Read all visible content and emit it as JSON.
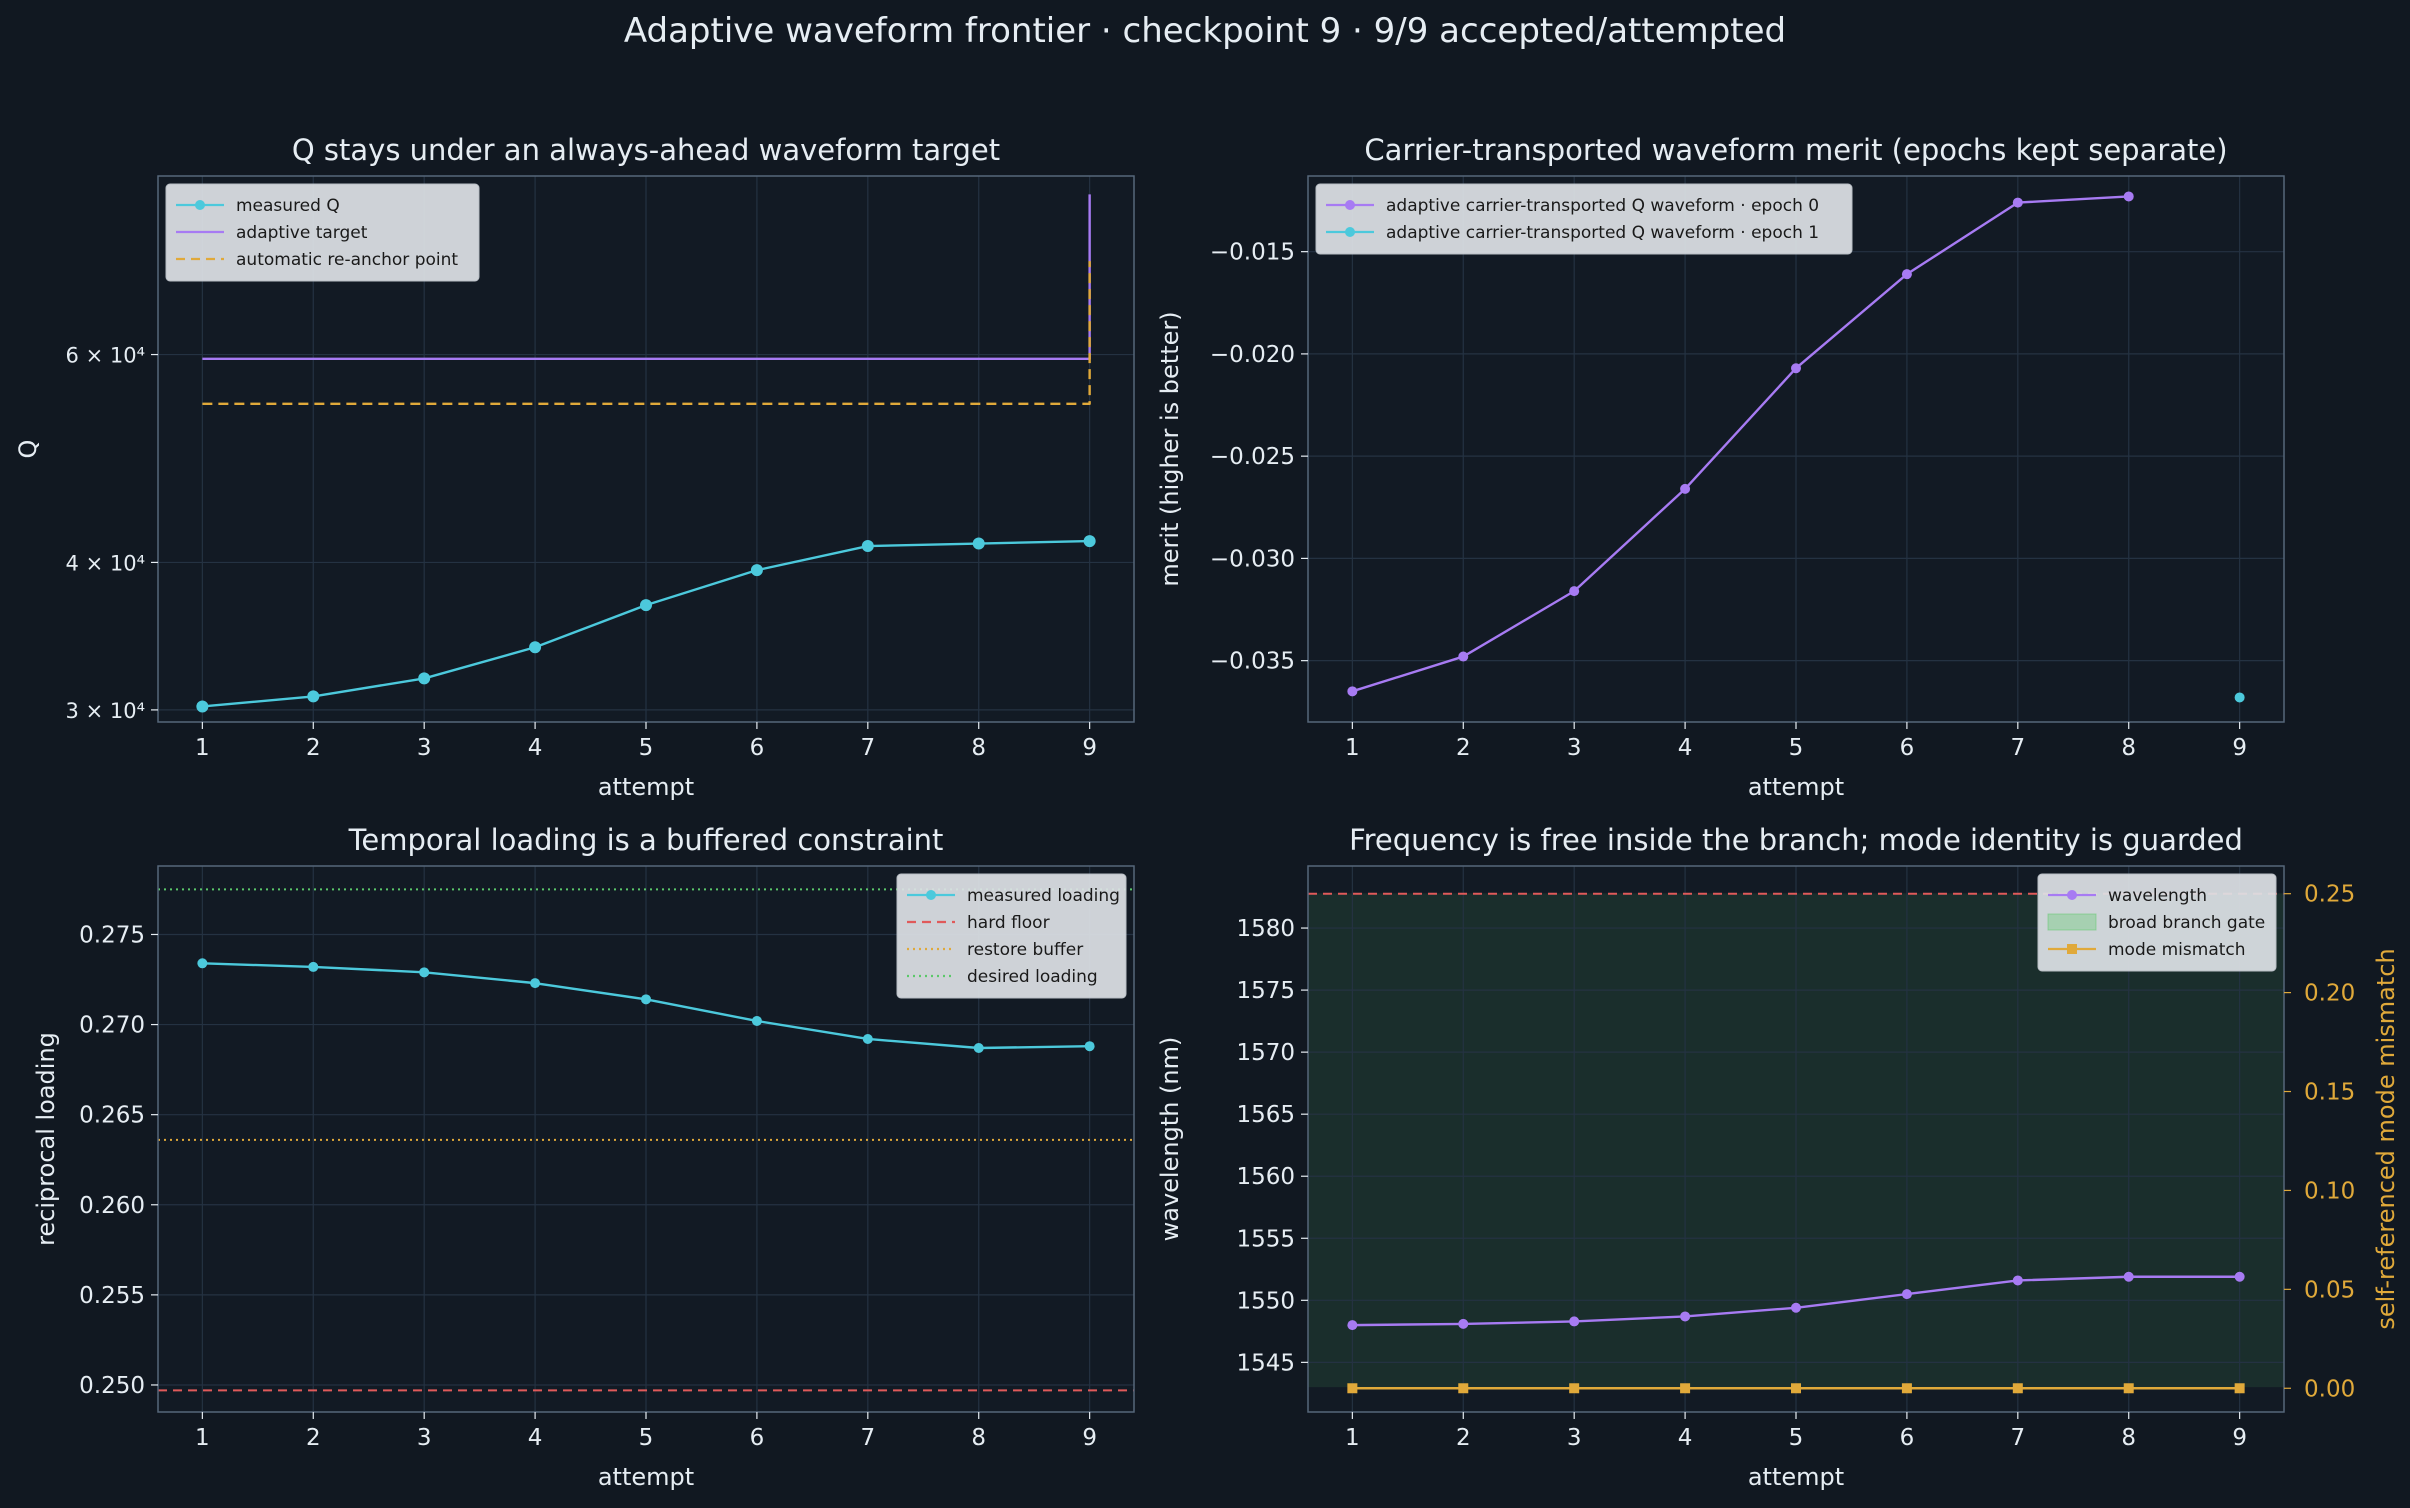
{
  "suptitle": "Adaptive waveform frontier · checkpoint 9 · 9/9 accepted/attempted",
  "colors": {
    "background": "#111821",
    "panel": "#121a24",
    "text": "#e6edf3",
    "spine": "#56677a",
    "grid": "#243242",
    "cyan": "#4cc9dc",
    "purple": "#a77bf3",
    "gold": "#e0a93a",
    "red": "#e05a5a",
    "green": "#5bc86a",
    "gate_fill": "#1a2e2c"
  },
  "chart_data": [
    {
      "id": "q",
      "type": "line",
      "title": "Q stays under an always-ahead waveform target",
      "xlabel": "attempt",
      "ylabel": "Q",
      "yscale": "log",
      "xlim": [
        0.6,
        9.4
      ],
      "ylim": [
        29300,
        85000
      ],
      "xticks": [
        1,
        2,
        3,
        4,
        5,
        6,
        7,
        8,
        9
      ],
      "yticks": [
        {
          "value": 30000,
          "label": "3 × 10⁴"
        },
        {
          "value": 40000,
          "label": "4 × 10⁴"
        },
        {
          "value": 60000,
          "label": "6 × 10⁴"
        }
      ],
      "grid": true,
      "legend_position": "upper-left",
      "series": [
        {
          "name": "measured Q",
          "kind": "markers-line",
          "x": [
            1,
            2,
            3,
            4,
            5,
            6,
            7,
            8,
            9
          ],
          "y": [
            30200,
            30800,
            31900,
            33900,
            36800,
            39400,
            41300,
            41500,
            41700
          ]
        },
        {
          "name": "adaptive target",
          "kind": "step",
          "x": [
            1,
            9,
            9
          ],
          "y": [
            59500,
            59500,
            82000
          ]
        },
        {
          "name": "automatic re-anchor point",
          "kind": "dashed-step",
          "x": [
            1,
            9,
            9
          ],
          "y": [
            54500,
            54500,
            72000
          ]
        }
      ]
    },
    {
      "id": "merit",
      "type": "line",
      "title": "Carrier-transported waveform merit (epochs kept separate)",
      "xlabel": "attempt",
      "ylabel": "merit (higher is better)",
      "xlim": [
        0.6,
        9.4
      ],
      "ylim": [
        -0.038,
        -0.0113
      ],
      "xticks": [
        1,
        2,
        3,
        4,
        5,
        6,
        7,
        8,
        9
      ],
      "yticks": [
        -0.035,
        -0.03,
        -0.025,
        -0.02,
        -0.015
      ],
      "ytick_labels": [
        "−0.035",
        "−0.030",
        "−0.025",
        "−0.020",
        "−0.015"
      ],
      "grid": true,
      "legend_position": "upper-left",
      "series": [
        {
          "name": "adaptive carrier-transported Q waveform · epoch 0",
          "kind": "markers-line",
          "x": [
            1,
            2,
            3,
            4,
            5,
            6,
            7,
            8
          ],
          "y": [
            -0.0365,
            -0.0348,
            -0.0316,
            -0.0266,
            -0.0207,
            -0.0161,
            -0.0126,
            -0.0123
          ]
        },
        {
          "name": "adaptive carrier-transported Q waveform · epoch 1",
          "kind": "markers-line",
          "x": [
            9
          ],
          "y": [
            -0.0368
          ]
        }
      ]
    },
    {
      "id": "loading",
      "type": "line",
      "title": "Temporal loading is a buffered constraint",
      "xlabel": "attempt",
      "ylabel": "reciprocal loading",
      "xlim": [
        0.6,
        9.4
      ],
      "ylim": [
        0.2485,
        0.2788
      ],
      "xticks": [
        1,
        2,
        3,
        4,
        5,
        6,
        7,
        8,
        9
      ],
      "yticks": [
        0.25,
        0.255,
        0.26,
        0.265,
        0.27,
        0.275
      ],
      "ytick_labels": [
        "0.250",
        "0.255",
        "0.260",
        "0.265",
        "0.270",
        "0.275"
      ],
      "grid": true,
      "legend_position": "upper-right",
      "series": [
        {
          "name": "measured loading",
          "kind": "markers-line",
          "x": [
            1,
            2,
            3,
            4,
            5,
            6,
            7,
            8,
            9
          ],
          "y": [
            0.2734,
            0.2732,
            0.2729,
            0.2723,
            0.2714,
            0.2702,
            0.2692,
            0.2687,
            0.2688
          ]
        },
        {
          "name": "hard floor",
          "kind": "hline-dashed",
          "y": 0.2497
        },
        {
          "name": "restore buffer",
          "kind": "hline-dotted",
          "y": 0.2636
        },
        {
          "name": "desired loading",
          "kind": "hline-dotted",
          "y": 0.2775
        }
      ]
    },
    {
      "id": "wavelength",
      "type": "line",
      "title": "Frequency is free inside the branch; mode identity is guarded",
      "xlabel": "attempt",
      "ylabel": "wavelength (nm)",
      "ylabel_right": "self-referenced mode mismatch",
      "xlim": [
        0.6,
        9.4
      ],
      "ylim": [
        1541,
        1585
      ],
      "ylim_right": [
        -0.012,
        0.264
      ],
      "xticks": [
        1,
        2,
        3,
        4,
        5,
        6,
        7,
        8,
        9
      ],
      "yticks": [
        1545,
        1550,
        1555,
        1560,
        1565,
        1570,
        1575,
        1580
      ],
      "yticks_right": [
        0,
        0.05,
        0.1,
        0.15,
        0.2,
        0.25
      ],
      "ytick_labels_right": [
        "0.00",
        "0.05",
        "0.10",
        "0.15",
        "0.20",
        "0.25"
      ],
      "grid": true,
      "legend_position": "upper-right",
      "gate": {
        "name": "broad branch gate",
        "from": 1543,
        "to": 1582.8
      },
      "limit_right": 0.25,
      "series": [
        {
          "name": "wavelength",
          "kind": "markers-line",
          "axis": "left",
          "x": [
            1,
            2,
            3,
            4,
            5,
            6,
            7,
            8,
            9
          ],
          "y": [
            1548,
            1548.1,
            1548.3,
            1548.7,
            1549.4,
            1550.5,
            1551.6,
            1551.9,
            1551.9
          ]
        },
        {
          "name": "mode mismatch",
          "kind": "square-line",
          "axis": "right",
          "x": [
            1,
            2,
            3,
            4,
            5,
            6,
            7,
            8,
            9
          ],
          "y": [
            0,
            0,
            0,
            0,
            0,
            0,
            0,
            0,
            0
          ]
        }
      ]
    }
  ]
}
